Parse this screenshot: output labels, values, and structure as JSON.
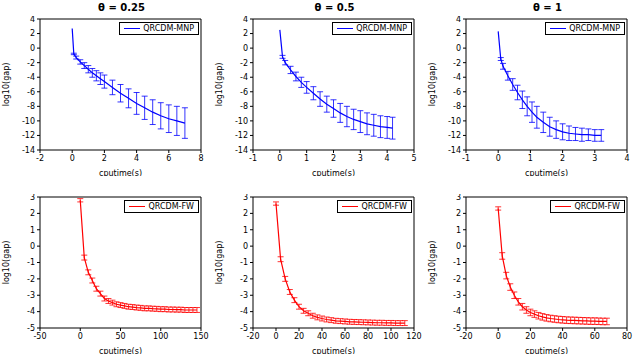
{
  "chart_data": [
    {
      "type": "line",
      "title": "θ = 0.25",
      "x_label": "cputime(s)",
      "y_label": "log10(gap)",
      "xlim": [
        -2,
        8
      ],
      "xticks": [
        -2,
        0,
        2,
        4,
        6,
        8
      ],
      "ylim": [
        -14,
        4
      ],
      "yticks": [
        -14,
        -12,
        -10,
        -8,
        -6,
        -4,
        -2,
        0,
        2,
        4
      ],
      "x": [
        0,
        0.1,
        0.25,
        0.5,
        0.75,
        1.0,
        1.25,
        1.5,
        1.75,
        2.0,
        2.5,
        3.0,
        3.5,
        4.0,
        4.5,
        5.0,
        5.5,
        6.0,
        6.5,
        7.0
      ],
      "series": [
        {
          "name": "QRCDM-MNP",
          "color": "#0000ff",
          "values": [
            2.7,
            -0.8,
            -1.3,
            -1.9,
            -2.4,
            -2.9,
            -3.4,
            -3.8,
            -4.2,
            -4.6,
            -5.4,
            -6.2,
            -6.9,
            -7.6,
            -8.2,
            -8.8,
            -9.3,
            -9.7,
            -10.0,
            -10.3
          ],
          "error": [
            0,
            0.1,
            0.2,
            0.3,
            0.4,
            0.5,
            0.6,
            0.7,
            0.8,
            0.9,
            1.0,
            1.2,
            1.3,
            1.5,
            1.6,
            1.7,
            1.8,
            1.9,
            2.0,
            2.1
          ]
        }
      ]
    },
    {
      "type": "line",
      "title": "θ = 0.5",
      "x_label": "cputime(s)",
      "y_label": "log10(gap)",
      "xlim": [
        -1,
        5
      ],
      "xticks": [
        -1,
        0,
        1,
        2,
        3,
        4,
        5
      ],
      "ylim": [
        -14,
        4
      ],
      "yticks": [
        -14,
        -12,
        -10,
        -8,
        -6,
        -4,
        -2,
        0,
        2,
        4
      ],
      "x": [
        0,
        0.1,
        0.2,
        0.4,
        0.6,
        0.8,
        1.0,
        1.25,
        1.5,
        1.75,
        2.0,
        2.25,
        2.5,
        2.75,
        3.0,
        3.25,
        3.5,
        3.75,
        4.0,
        4.2
      ],
      "series": [
        {
          "name": "QRCDM-MNP",
          "color": "#0000ff",
          "values": [
            2.5,
            -1.2,
            -2.0,
            -3.0,
            -3.9,
            -4.7,
            -5.4,
            -6.2,
            -7.0,
            -7.7,
            -8.3,
            -8.9,
            -9.4,
            -9.8,
            -10.1,
            -10.4,
            -10.6,
            -10.8,
            -10.9,
            -11.0
          ],
          "error": [
            0,
            0.2,
            0.3,
            0.5,
            0.6,
            0.7,
            0.8,
            0.9,
            1.0,
            1.1,
            1.2,
            1.3,
            1.4,
            1.4,
            1.5,
            1.5,
            1.5,
            1.5,
            1.5,
            1.5
          ]
        }
      ]
    },
    {
      "type": "line",
      "title": "θ = 1",
      "x_label": "cputime(s)",
      "y_label": "log10(gap)",
      "xlim": [
        -1,
        4
      ],
      "xticks": [
        -1,
        0,
        1,
        2,
        3,
        4
      ],
      "ylim": [
        -14,
        4
      ],
      "yticks": [
        -14,
        -12,
        -10,
        -8,
        -6,
        -4,
        -2,
        0,
        2,
        4
      ],
      "x": [
        0,
        0.08,
        0.15,
        0.3,
        0.45,
        0.6,
        0.75,
        0.9,
        1.05,
        1.2,
        1.4,
        1.6,
        1.8,
        2.0,
        2.2,
        2.4,
        2.6,
        2.8,
        3.0,
        3.2
      ],
      "series": [
        {
          "name": "QRCDM-MNP",
          "color": "#0000ff",
          "values": [
            2.3,
            -1.5,
            -2.5,
            -3.8,
            -5.0,
            -6.1,
            -7.1,
            -8.0,
            -8.8,
            -9.5,
            -10.2,
            -10.8,
            -11.2,
            -11.5,
            -11.7,
            -11.8,
            -11.9,
            -11.9,
            -12.0,
            -12.0
          ],
          "error": [
            0,
            0.2,
            0.4,
            0.6,
            0.8,
            1.0,
            1.2,
            1.3,
            1.4,
            1.5,
            1.4,
            1.3,
            1.2,
            1.1,
            1.0,
            0.9,
            0.9,
            0.8,
            0.8,
            0.8
          ]
        }
      ]
    },
    {
      "type": "line",
      "title": "",
      "x_label": "cputime(s)",
      "y_label": "log10(gap)",
      "xlim": [
        -50,
        150
      ],
      "xticks": [
        -50,
        0,
        50,
        100,
        150
      ],
      "ylim": [
        -5,
        3
      ],
      "yticks": [
        -5,
        -4,
        -3,
        -2,
        -1,
        0,
        1,
        2,
        3
      ],
      "x": [
        0,
        5,
        10,
        15,
        20,
        25,
        30,
        35,
        40,
        45,
        50,
        55,
        60,
        65,
        70,
        75,
        80,
        85,
        90,
        95,
        100,
        105,
        110,
        115,
        120,
        125,
        130,
        135,
        140,
        145
      ],
      "series": [
        {
          "name": "QRCDM-FW",
          "color": "#ff0000",
          "values": [
            2.8,
            -0.7,
            -1.6,
            -2.1,
            -2.6,
            -2.9,
            -3.2,
            -3.35,
            -3.45,
            -3.55,
            -3.6,
            -3.65,
            -3.7,
            -3.72,
            -3.75,
            -3.77,
            -3.8,
            -3.8,
            -3.82,
            -3.83,
            -3.85,
            -3.85,
            -3.87,
            -3.87,
            -3.88,
            -3.88,
            -3.9,
            -3.9,
            -3.9,
            -3.9
          ],
          "error": [
            0.1,
            0.15,
            0.15,
            0.15,
            0.15,
            0.15,
            0.15,
            0.15,
            0.15,
            0.15,
            0.15,
            0.15,
            0.15,
            0.15,
            0.15,
            0.15,
            0.15,
            0.15,
            0.15,
            0.15,
            0.15,
            0.15,
            0.15,
            0.15,
            0.15,
            0.15,
            0.15,
            0.15,
            0.15,
            0.15
          ]
        }
      ]
    },
    {
      "type": "line",
      "title": "",
      "x_label": "cputime(s)",
      "y_label": "log10(gap)",
      "xlim": [
        -20,
        120
      ],
      "xticks": [
        -20,
        0,
        20,
        40,
        60,
        80,
        100,
        120
      ],
      "ylim": [
        -5,
        3
      ],
      "yticks": [
        -5,
        -4,
        -3,
        -2,
        -1,
        0,
        1,
        2,
        3
      ],
      "x": [
        0,
        4,
        8,
        12,
        16,
        20,
        24,
        28,
        32,
        36,
        40,
        44,
        48,
        52,
        56,
        60,
        64,
        68,
        72,
        76,
        80,
        84,
        88,
        92,
        96,
        100,
        104,
        108,
        112
      ],
      "series": [
        {
          "name": "QRCDM-FW",
          "color": "#ff0000",
          "values": [
            2.6,
            -0.8,
            -2.0,
            -2.8,
            -3.3,
            -3.7,
            -3.95,
            -4.1,
            -4.25,
            -4.35,
            -4.42,
            -4.48,
            -4.52,
            -4.56,
            -4.58,
            -4.6,
            -4.62,
            -4.63,
            -4.64,
            -4.65,
            -4.66,
            -4.67,
            -4.68,
            -4.68,
            -4.69,
            -4.69,
            -4.7,
            -4.7,
            -4.7
          ],
          "error": [
            0.1,
            0.15,
            0.15,
            0.15,
            0.15,
            0.15,
            0.15,
            0.15,
            0.15,
            0.15,
            0.15,
            0.15,
            0.15,
            0.15,
            0.15,
            0.15,
            0.15,
            0.15,
            0.15,
            0.15,
            0.15,
            0.15,
            0.15,
            0.15,
            0.15,
            0.15,
            0.15,
            0.15,
            0.15
          ]
        }
      ]
    },
    {
      "type": "line",
      "title": "",
      "x_label": "cputime(s)",
      "y_label": "log10(gap)",
      "xlim": [
        -20,
        80
      ],
      "xticks": [
        -20,
        0,
        20,
        40,
        60,
        80
      ],
      "ylim": [
        -5,
        3
      ],
      "yticks": [
        -5,
        -4,
        -3,
        -2,
        -1,
        0,
        1,
        2,
        3
      ],
      "x": [
        0,
        2.5,
        5,
        7.5,
        10,
        12.5,
        15,
        17.5,
        20,
        22.5,
        25,
        27.5,
        30,
        32.5,
        35,
        37.5,
        40,
        42.5,
        45,
        47.5,
        50,
        52.5,
        55,
        57.5,
        60,
        62.5,
        65,
        67.5
      ],
      "series": [
        {
          "name": "QRCDM-FW",
          "color": "#ff0000",
          "values": [
            2.3,
            -0.6,
            -1.8,
            -2.5,
            -3.0,
            -3.4,
            -3.7,
            -3.9,
            -4.05,
            -4.15,
            -4.25,
            -4.32,
            -4.38,
            -4.42,
            -4.45,
            -4.48,
            -4.5,
            -4.52,
            -4.53,
            -4.54,
            -4.55,
            -4.56,
            -4.57,
            -4.58,
            -4.58,
            -4.59,
            -4.6,
            -4.6
          ],
          "error": [
            0.1,
            0.2,
            0.2,
            0.2,
            0.2,
            0.2,
            0.2,
            0.2,
            0.2,
            0.2,
            0.2,
            0.2,
            0.2,
            0.2,
            0.2,
            0.2,
            0.2,
            0.2,
            0.2,
            0.2,
            0.2,
            0.2,
            0.2,
            0.2,
            0.2,
            0.2,
            0.2,
            0.2
          ]
        }
      ]
    }
  ]
}
